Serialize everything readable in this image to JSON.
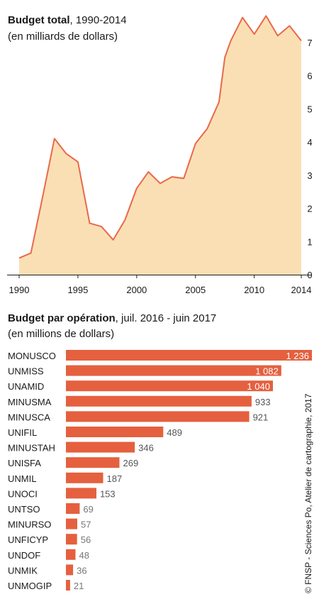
{
  "chart_data": [
    {
      "type": "area",
      "title": "Budget total",
      "subtitle": "1990-2014",
      "ylabel": "(en milliards de dollars)",
      "x": [
        1990,
        1991,
        1992,
        1993,
        1994,
        1995,
        1996,
        1997,
        1998,
        1999,
        2000,
        2001,
        2002,
        2003,
        2004,
        2005,
        2006,
        2007,
        2007.5,
        2008,
        2009,
        2010,
        2011,
        2012,
        2013,
        2014
      ],
      "values": [
        0.5,
        0.65,
        2.35,
        4.1,
        3.65,
        3.4,
        1.55,
        1.45,
        1.05,
        1.65,
        2.6,
        3.1,
        2.75,
        2.95,
        2.9,
        3.95,
        4.4,
        5.2,
        6.55,
        7.05,
        7.75,
        7.25,
        7.8,
        7.2,
        7.5,
        7.05
      ],
      "xticks": [
        "1990",
        "1995",
        "2000",
        "2005",
        "2010",
        "2014"
      ],
      "xtick_values": [
        1990,
        1995,
        2000,
        2005,
        2010,
        2014
      ],
      "yticks": [
        "0",
        "1",
        "2",
        "3",
        "4",
        "5",
        "6",
        "7"
      ],
      "xlim": [
        1990,
        2014
      ],
      "ylim": [
        0,
        8
      ],
      "fill_color": "#fbdfb4",
      "line_color": "#e8694a"
    },
    {
      "type": "bar",
      "orientation": "horizontal",
      "title": "Budget par opération",
      "subtitle": "juil. 2016 - juin 2017",
      "ylabel": "(en millions de dollars)",
      "categories": [
        "MONUSCO",
        "UNMISS",
        "UNAMID",
        "MINUSMA",
        "MINUSCA",
        "UNIFIL",
        "MINUSTAH",
        "UNISFA",
        "UNMIL",
        "UNOCI",
        "UNTSO",
        "MINURSO",
        "UNFICYP",
        "UNDOF",
        "UNMIK",
        "UNMOGIP"
      ],
      "values": [
        1236,
        1082,
        1040,
        933,
        921,
        489,
        346,
        269,
        187,
        153,
        69,
        57,
        56,
        48,
        36,
        21
      ],
      "value_labels": [
        "1 236",
        "1 082",
        "1 040",
        "933",
        "921",
        "489",
        "346",
        "269",
        "187",
        "153",
        "69",
        "57",
        "56",
        "48",
        "36",
        "21"
      ],
      "bar_color": "#e5603f"
    }
  ],
  "credit": "© FNSP - Sciences Po, Atelier de cartographie, 2017"
}
